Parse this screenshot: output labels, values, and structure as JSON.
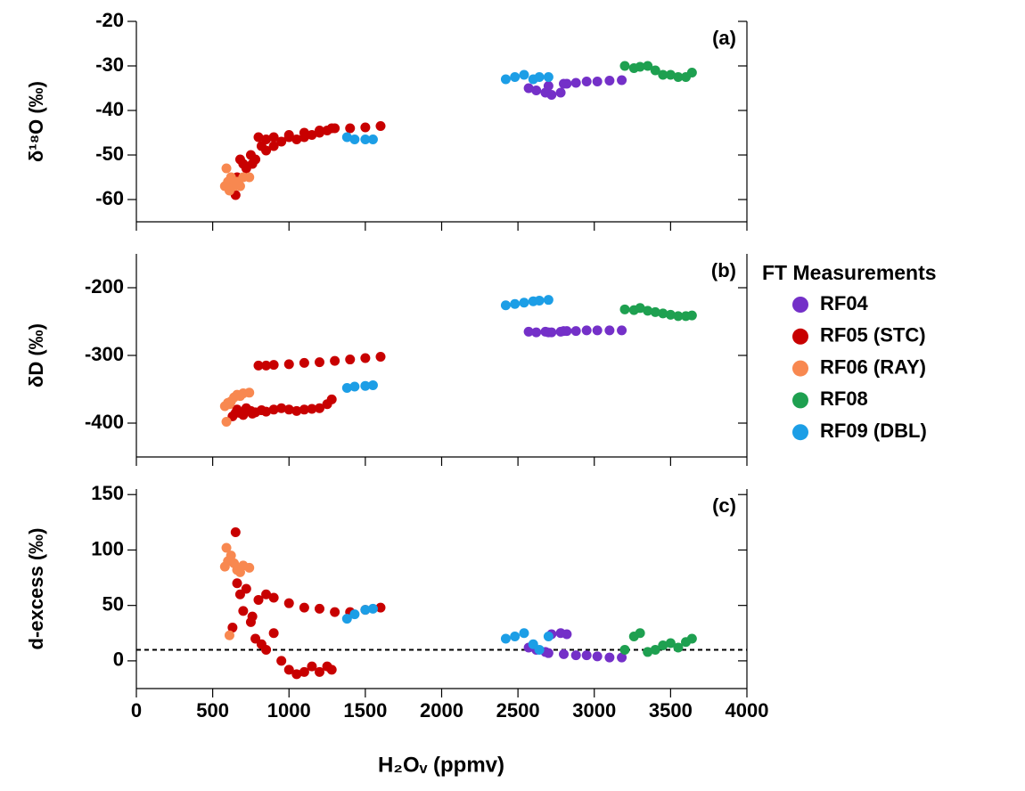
{
  "chart_data": {
    "type": "scatter",
    "xlabel": "H₂Oᵥ (ppmv)",
    "xlim": [
      0,
      4000
    ],
    "xticks": [
      0,
      500,
      1000,
      1500,
      2000,
      2500,
      3000,
      3500,
      4000
    ],
    "legend_title": "FT Measurements",
    "panels": [
      {
        "label": "(a)",
        "ylabel": "δ¹⁸O (‰)",
        "ylim": [
          -65,
          -20
        ],
        "yticks": [
          -60,
          -50,
          -40,
          -30,
          -20
        ]
      },
      {
        "label": "(b)",
        "ylabel": "δD (‰)",
        "ylim": [
          -450,
          -150
        ],
        "yticks": [
          -400,
          -300,
          -200
        ]
      },
      {
        "label": "(c)",
        "ylabel": "d-excess (‰)",
        "ylim": [
          -25,
          155
        ],
        "yticks": [
          0,
          50,
          100,
          150
        ],
        "reference_line": 10
      }
    ],
    "series": [
      {
        "name": "RF04",
        "color": "#7430c8",
        "x": [
          2570,
          2620,
          2680,
          2720,
          2780,
          2820,
          2700,
          2800,
          2880,
          2950,
          3020,
          3100,
          3180
        ],
        "y": [
          [
            -35,
            -35.5,
            -36,
            -36.5,
            -36,
            -34,
            -34.5,
            -34,
            -33.8,
            -33.5,
            -33.5,
            -33.3,
            -33.2
          ],
          [
            -265,
            -266,
            -265,
            -266,
            -265,
            -264,
            -266,
            -264,
            -264,
            -263,
            -263,
            -263,
            -263
          ],
          [
            12,
            10,
            8,
            24,
            25,
            24,
            7,
            6,
            5,
            5,
            4,
            3,
            3
          ]
        ]
      },
      {
        "name": "RF05 (STC)",
        "color": "#c80000",
        "x": [
          650,
          630,
          660,
          680,
          700,
          750,
          800,
          850,
          900,
          1000,
          1100,
          1200,
          1300,
          1400,
          1500,
          1600,
          780,
          850,
          900,
          950,
          1000,
          1050,
          1100,
          1150,
          1200,
          1250,
          1280,
          720,
          760,
          820
        ],
        "y": [
          [
            -59,
            -57,
            -55,
            -51,
            -52,
            -50,
            -46,
            -46.5,
            -46,
            -45.5,
            -45,
            -44.5,
            -44,
            -44,
            -43.8,
            -43.5,
            -51,
            -49,
            -48,
            -47,
            -46,
            -46.5,
            -46,
            -45.5,
            -45,
            -44.5,
            -44,
            -53,
            -52,
            -48
          ],
          [
            -385,
            -390,
            -380,
            -385,
            -388,
            -382,
            -315,
            -315,
            -314,
            -313,
            -311,
            -310,
            -308,
            -306,
            -304,
            -302,
            -384,
            -383,
            -380,
            -378,
            -380,
            -382,
            -380,
            -379,
            -378,
            -372,
            -365,
            -378,
            -386,
            -381
          ],
          [
            116,
            30,
            70,
            60,
            45,
            35,
            55,
            60,
            57,
            52,
            48,
            47,
            44,
            44,
            46,
            48,
            20,
            10,
            25,
            0,
            -8,
            -12,
            -10,
            -5,
            -10,
            -5,
            -8,
            65,
            40,
            15
          ]
        ]
      },
      {
        "name": "RF06 (RAY)",
        "color": "#f88850",
        "x": [
          580,
          600,
          620,
          640,
          660,
          700,
          740,
          590,
          610,
          680
        ],
        "y": [
          [
            -57,
            -56,
            -55,
            -57,
            -56,
            -55,
            -55,
            -53,
            -58,
            -57
          ],
          [
            -375,
            -370,
            -368,
            -362,
            -358,
            -356,
            -355,
            -398,
            -372,
            -360
          ],
          [
            85,
            90,
            95,
            88,
            82,
            86,
            84,
            102,
            23,
            80
          ]
        ]
      },
      {
        "name": "RF08",
        "color": "#1ea050",
        "x": [
          3200,
          3260,
          3300,
          3350,
          3400,
          3450,
          3500,
          3550,
          3600,
          3640
        ],
        "y": [
          [
            -30,
            -30.5,
            -30.2,
            -30,
            -31,
            -32,
            -32,
            -32.5,
            -32.5,
            -31.5
          ],
          [
            -232,
            -233,
            -230,
            -234,
            -236,
            -238,
            -240,
            -242,
            -242,
            -241
          ],
          [
            10,
            22,
            25,
            8,
            10,
            14,
            16,
            12,
            17,
            20
          ]
        ]
      },
      {
        "name": "RF09 (DBL)",
        "color": "#1c9ee6",
        "x": [
          2420,
          2480,
          2540,
          2600,
          2640,
          2700,
          1380,
          1430,
          1500,
          1550
        ],
        "y": [
          [
            -33,
            -32.5,
            -32,
            -33,
            -32.5,
            -32.5,
            -46,
            -46.5,
            -46.5,
            -46.5
          ],
          [
            -226,
            -224,
            -222,
            -220,
            -219,
            -218,
            -348,
            -346,
            -345,
            -344
          ],
          [
            20,
            22,
            25,
            15,
            10,
            22,
            38,
            42,
            46,
            47
          ]
        ]
      }
    ]
  }
}
